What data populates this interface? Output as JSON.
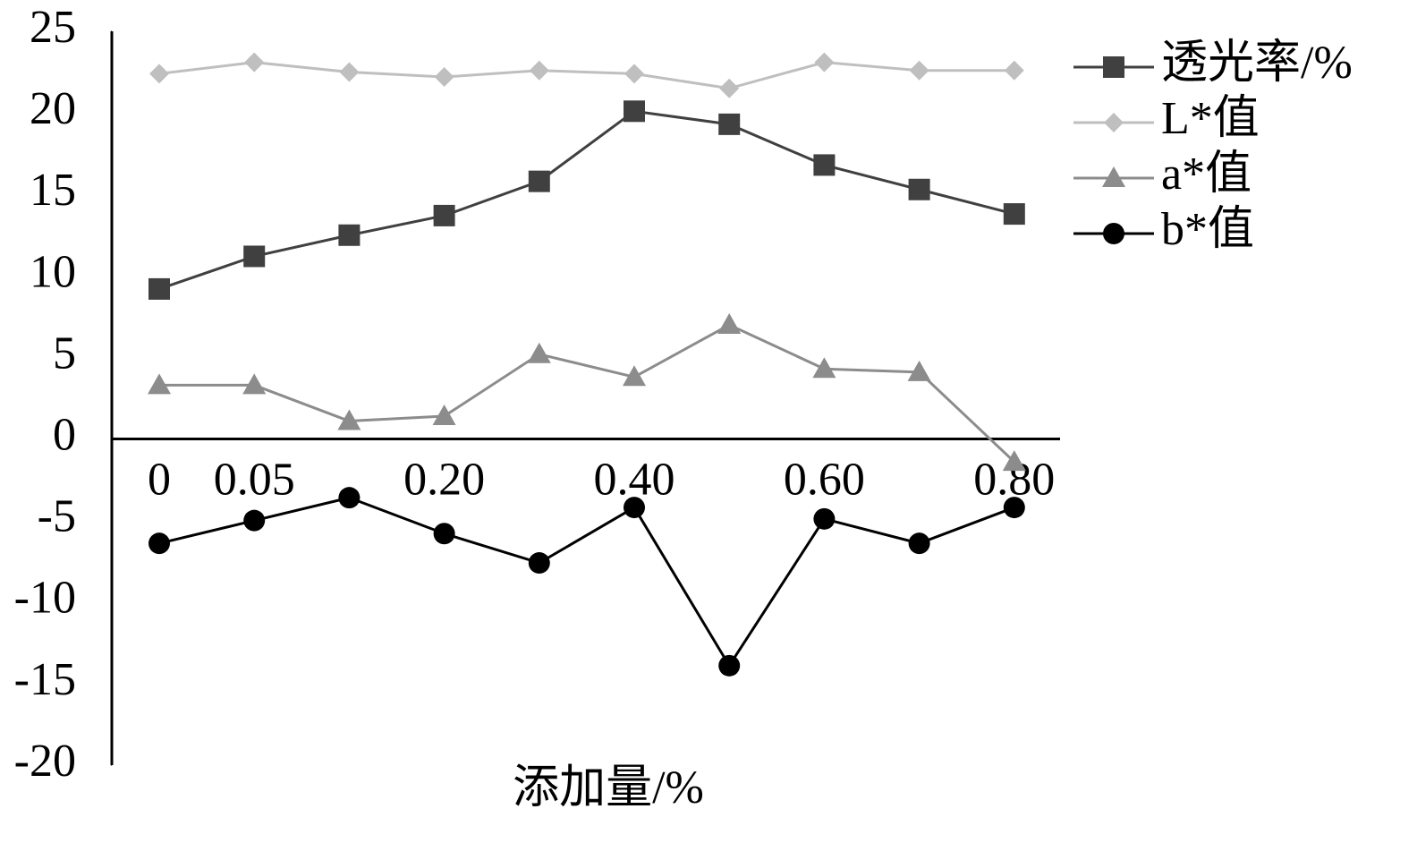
{
  "chart_data": {
    "type": "line",
    "x_label": "添加量/%",
    "categories": [
      "0",
      "0.05",
      null,
      "0.20",
      null,
      "0.40",
      null,
      "0.60",
      null,
      "0.80"
    ],
    "series": [
      {
        "name": "透光率/%",
        "color": "#404040",
        "marker": "square",
        "values": [
          9.2,
          11.2,
          12.5,
          13.7,
          15.8,
          20.1,
          19.3,
          16.8,
          15.3,
          13.8
        ]
      },
      {
        "name": "L*值",
        "color": "#bfbfbf",
        "marker": "diamond",
        "values": [
          22.4,
          23.1,
          22.5,
          22.2,
          22.6,
          22.4,
          21.5,
          23.1,
          22.6,
          22.6
        ]
      },
      {
        "name": "a*值",
        "color": "#8c8c8c",
        "marker": "triangle",
        "values": [
          3.3,
          3.3,
          1.1,
          1.4,
          5.2,
          3.8,
          7.0,
          4.3,
          4.1,
          -1.4
        ]
      },
      {
        "name": "b*值",
        "color": "#000000",
        "marker": "circle",
        "values": [
          -6.4,
          -5.0,
          -3.6,
          -5.8,
          -7.6,
          -4.2,
          -13.9,
          -4.9,
          -6.4,
          -4.2
        ]
      }
    ],
    "ylim": [
      -20,
      25
    ],
    "yticks": [
      -20,
      -15,
      -10,
      -5,
      0,
      5,
      10,
      15,
      20,
      25
    ],
    "grid": false,
    "legend": "right"
  }
}
